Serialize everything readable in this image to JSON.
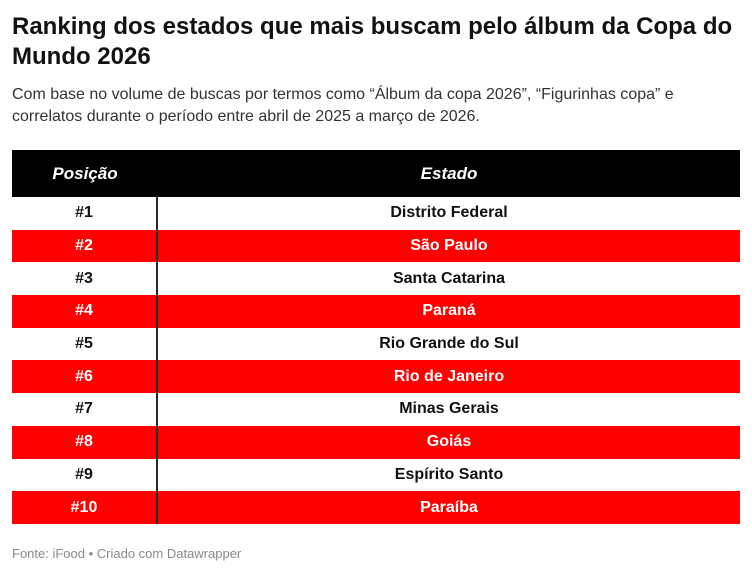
{
  "chart_data": {
    "type": "table",
    "title": "Ranking dos estados que mais buscam pelo álbum da Copa do Mundo 2026",
    "subtitle": "Com base no volume de buscas por termos como “Álbum da copa 2026”, “Figurinhas copa” e correlatos durante o período entre abril de 2025 a março de 2026.",
    "columns": [
      "Posição",
      "Estado"
    ],
    "rows": [
      [
        "#1",
        "Distrito Federal"
      ],
      [
        "#2",
        "São Paulo"
      ],
      [
        "#3",
        "Santa Catarina"
      ],
      [
        "#4",
        "Paraná"
      ],
      [
        "#5",
        "Rio Grande do Sul"
      ],
      [
        "#6",
        "Rio de Janeiro"
      ],
      [
        "#7",
        "Minas Gerais"
      ],
      [
        "#8",
        "Goiás"
      ],
      [
        "#9",
        "Espírito Santo"
      ],
      [
        "#10",
        "Paraíba"
      ]
    ],
    "source": "Fonte: iFood • Criado com Datawrapper",
    "colors": {
      "header_bg": "#000000",
      "highlight_row": "#ff0000",
      "plain_row": "#ffffff"
    }
  }
}
